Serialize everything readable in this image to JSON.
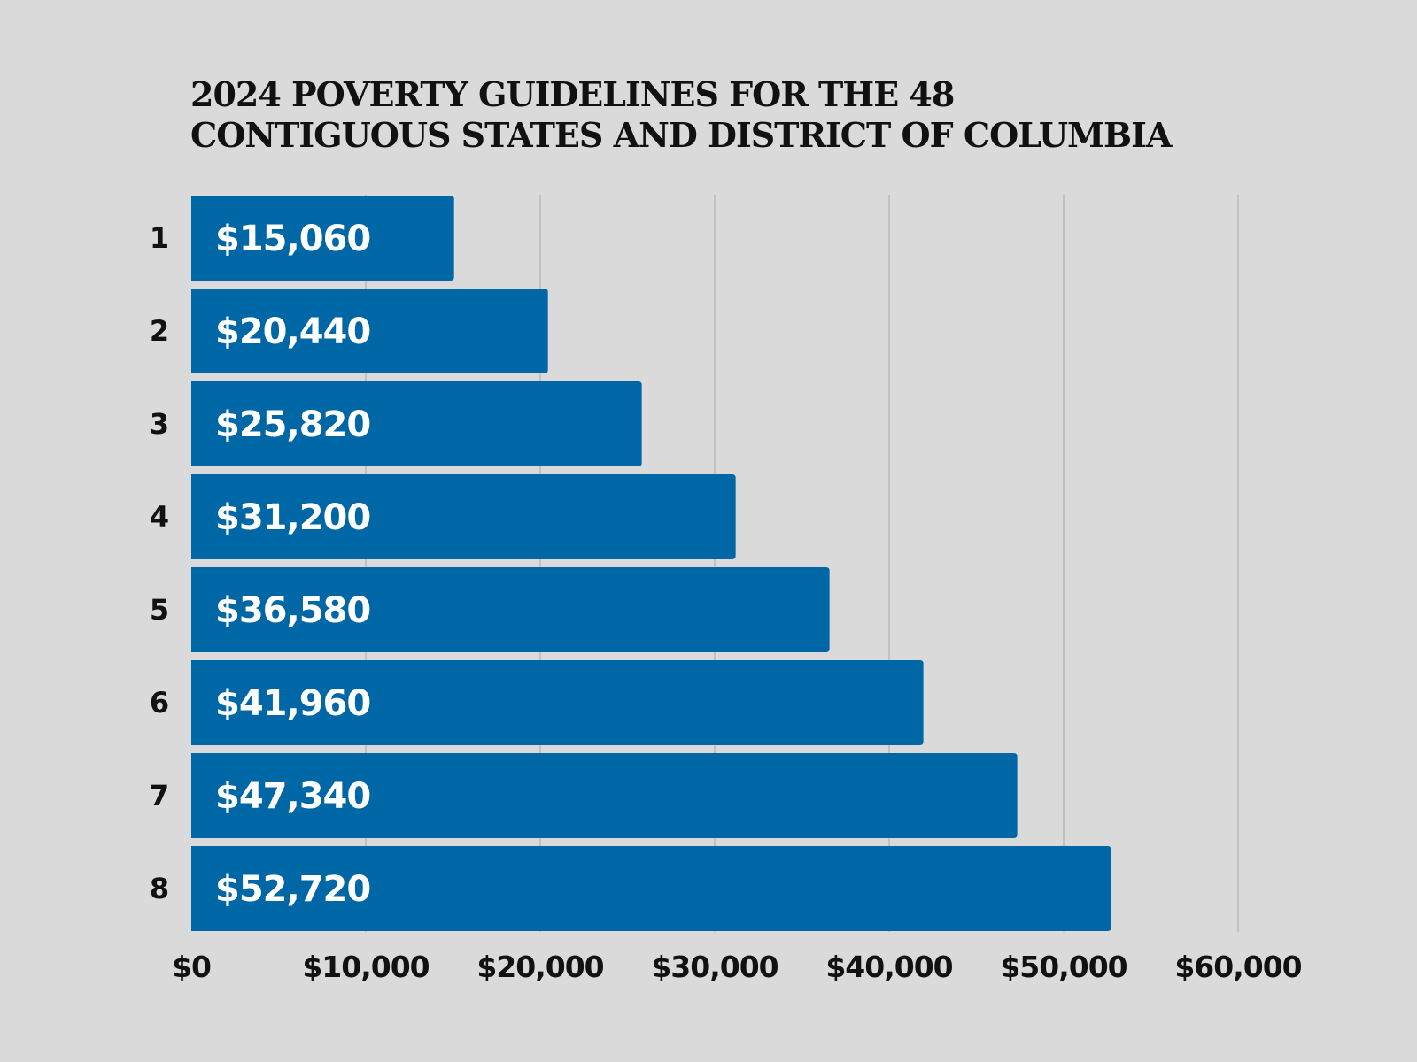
{
  "chart_data": {
    "type": "bar",
    "orientation": "horizontal",
    "title": "2024 POVERTY GUIDELINES FOR THE  48\nCONTIGUOUS STATES AND DISTRICT OF COLUMBIA",
    "categories": [
      "1",
      "2",
      "3",
      "4",
      "5",
      "6",
      "7",
      "8"
    ],
    "values": [
      15060,
      20440,
      25820,
      31200,
      36580,
      41960,
      47340,
      52720
    ],
    "value_labels": [
      "$15,060",
      "$20,440",
      "$25,820",
      "$31,200",
      "$36,580",
      "$41,960",
      "$47,340",
      "$52,720"
    ],
    "xlim": [
      0,
      60000
    ],
    "x_ticks": [
      0,
      10000,
      20000,
      30000,
      40000,
      50000,
      60000
    ],
    "x_tick_labels": [
      "$0",
      "$10,000",
      "$20,000",
      "$30,000",
      "$40,000",
      "$50,000",
      "$60,000"
    ],
    "grid": true,
    "legend": "none",
    "colors": {
      "background": "#dadada",
      "bar": "#0067a6",
      "bar_label": "#ffffff",
      "text": "#111111",
      "gridline": "#b3b3b3"
    }
  }
}
